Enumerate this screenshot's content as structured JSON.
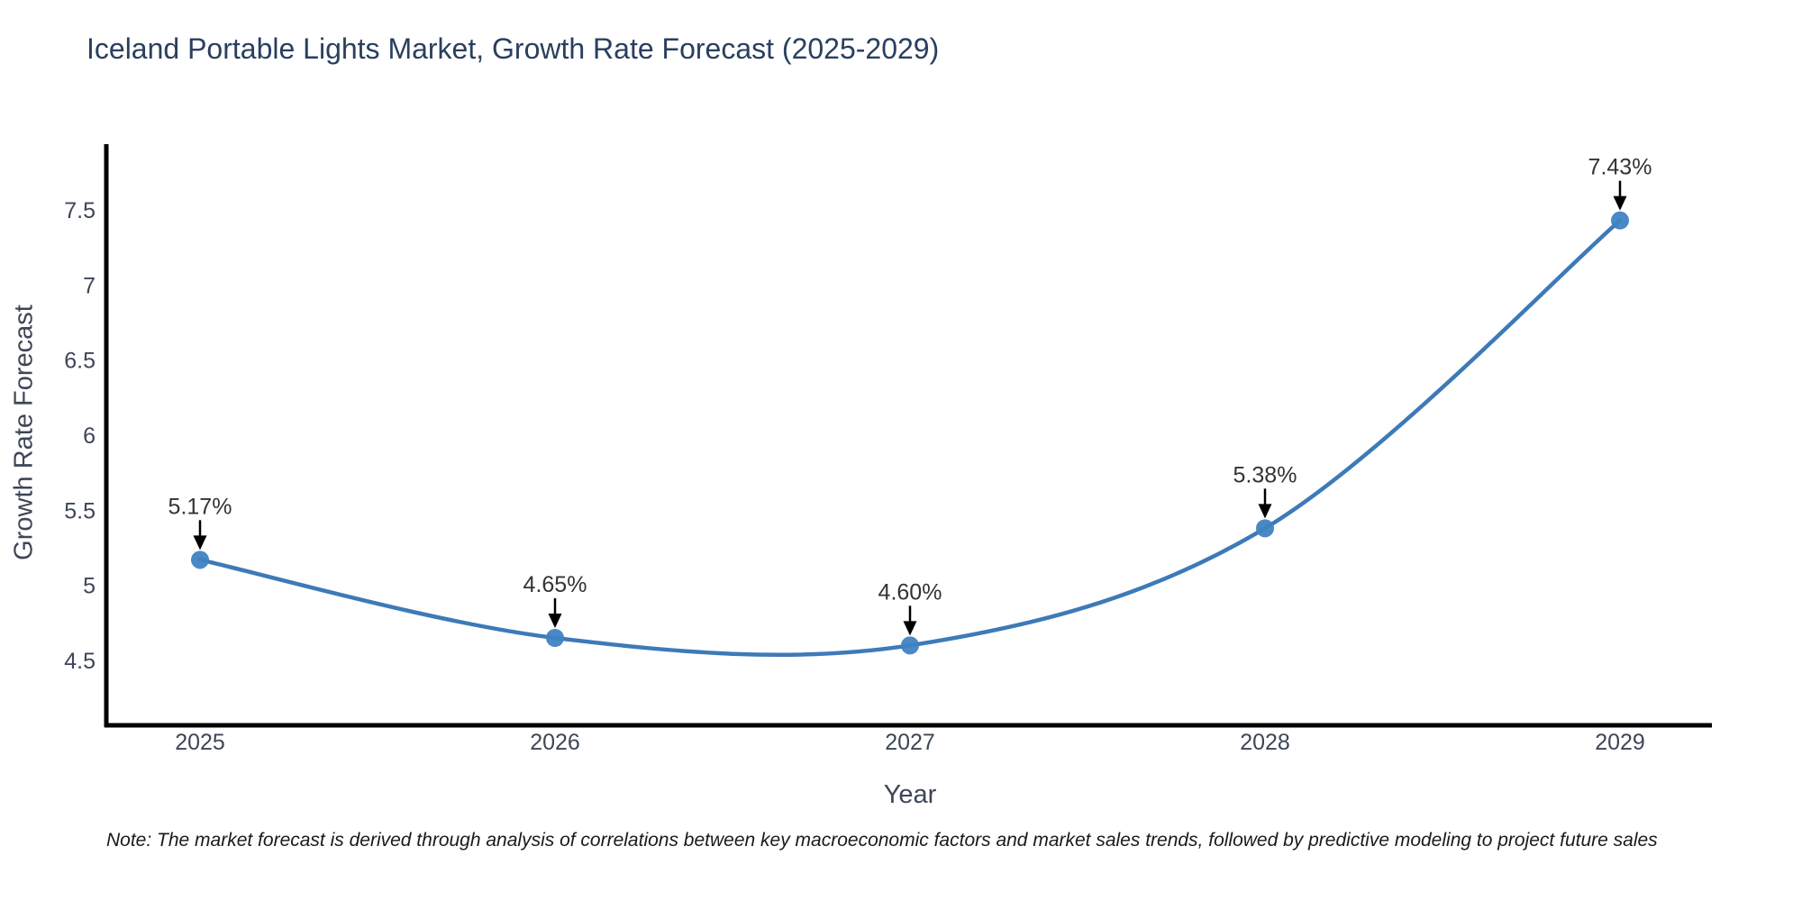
{
  "chart_data": {
    "type": "line",
    "title": "Iceland Portable Lights Market, Growth Rate Forecast (2025-2029)",
    "xlabel": "Year",
    "ylabel": "Growth Rate Forecast",
    "categories": [
      "2025",
      "2026",
      "2027",
      "2028",
      "2029"
    ],
    "series": [
      {
        "name": "Growth Rate Forecast",
        "values": [
          5.17,
          4.65,
          4.6,
          5.38,
          7.43
        ],
        "point_labels": [
          "5.17%",
          "4.65%",
          "4.60%",
          "5.38%",
          "7.43%"
        ]
      }
    ],
    "y_tick_values": [
      4.5,
      5,
      5.5,
      6,
      6.5,
      7,
      7.5
    ],
    "y_tick_labels": [
      "4.5",
      "5",
      "5.5",
      "6",
      "6.5",
      "7",
      "7.5"
    ],
    "ylim": [
      4.07,
      7.93
    ],
    "grid": false,
    "legend_position": "none",
    "line_shape": "spline",
    "line_color": "#3d7ab8",
    "marker_color": "#3f83c2",
    "arrow_color": "#000000",
    "axis_color": "#000000",
    "tick_color": "#3d4657",
    "annotation_text_color": "#333333",
    "title_color": "#2a3f5f"
  },
  "note": {
    "text": "Note: The market forecast is derived through analysis of correlations between key macroeconomic factors and market sales trends, followed by predictive modeling to project future sales"
  }
}
